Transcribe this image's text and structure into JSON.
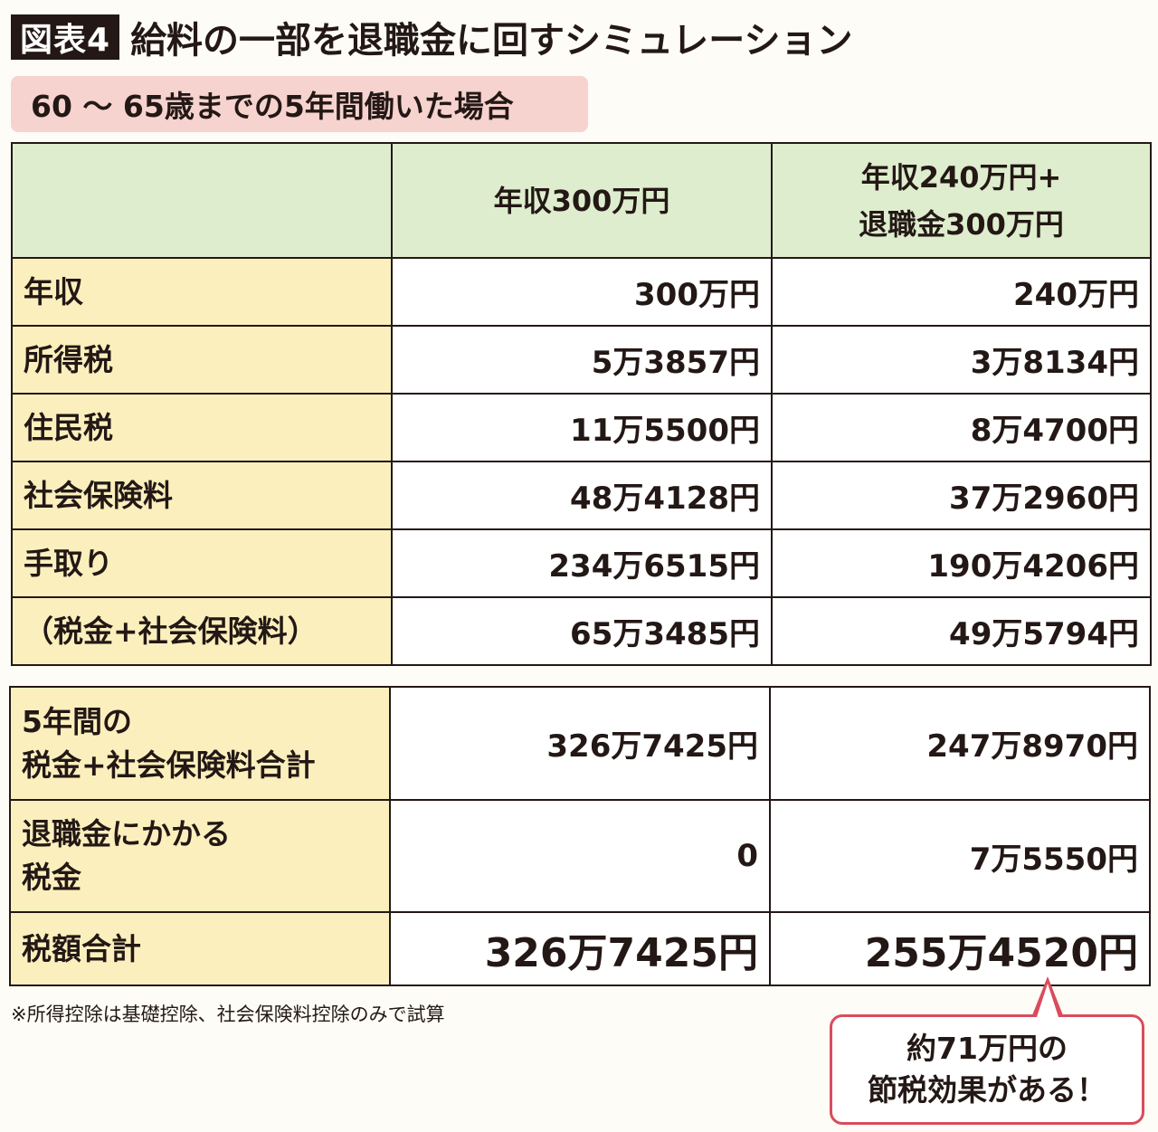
{
  "header": {
    "tag": "図表4",
    "title": "給料の一部を退職金に回すシミュレーション",
    "condition": "60 〜 65歳までの5年間働いた場合"
  },
  "table1": {
    "col1": "年収300万円",
    "col2_line1": "年収240万円+",
    "col2_line2": "退職金300万円",
    "rows": [
      {
        "label": "年収",
        "a": "300万円",
        "b": "240万円"
      },
      {
        "label": "所得税",
        "a": "5万3857円",
        "b": "3万8134円"
      },
      {
        "label": "住民税",
        "a": "11万5500円",
        "b": "8万4700円"
      },
      {
        "label": "社会保険料",
        "a": "48万4128円",
        "b": "37万2960円"
      },
      {
        "label": "手取り",
        "a": "234万6515円",
        "b": "190万4206円"
      },
      {
        "label": "（税金+社会保険料）",
        "a": "65万3485円",
        "b": "49万5794円"
      }
    ]
  },
  "table2": {
    "rows": [
      {
        "label_line1": "5年間の",
        "label_line2": "税金+社会保険料合計",
        "a": "326万7425円",
        "b": "247万8970円"
      },
      {
        "label_line1": "退職金にかかる",
        "label_line2": "税金",
        "a": "0",
        "b": "7万5550円"
      },
      {
        "label_line1": "税額合計",
        "label_line2": "",
        "a": "326万7425円",
        "b": "255万4520円"
      }
    ]
  },
  "note": "※所得控除は基礎控除、社会保険料控除のみで試算",
  "callout": {
    "line1": "約71万円の",
    "line2": "節税効果がある！"
  },
  "colors": {
    "header_green": "#deedcd",
    "label_yellow": "#fbf0bd",
    "condition_pink": "#f6d3cf",
    "callout_border": "#d94c5c",
    "tag_black": "#231815"
  }
}
